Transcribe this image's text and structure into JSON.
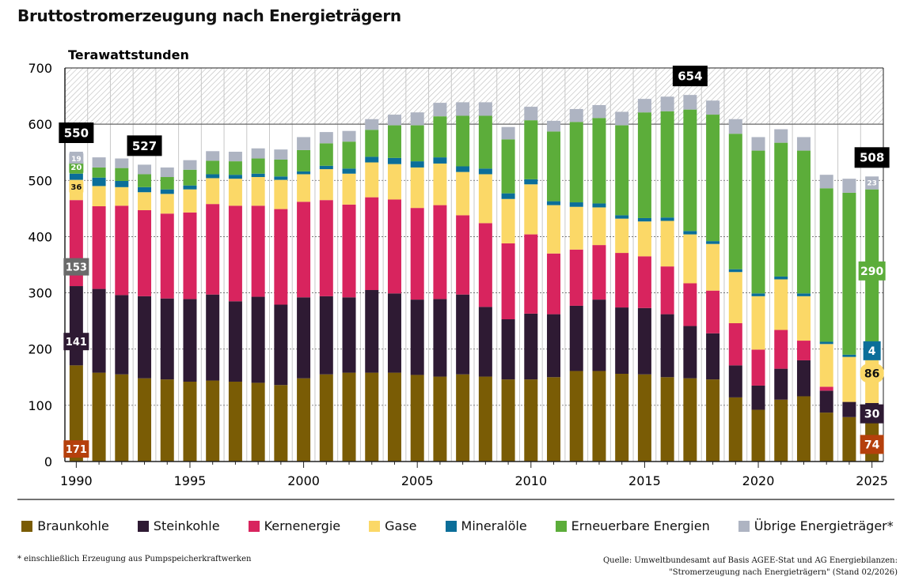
{
  "title": "Bruttostromerzeugung nach Energieträgern",
  "footnote": "* einschließlich Erzeugung aus Pumpspeicherkraftwerken",
  "source": {
    "line1": "Quelle: Umweltbundesamt auf Basis AGEE-Stat und AG Energiebilanzen:",
    "line2": "\"Stromerzeugung nach Energieträgern\" (Stand 02/2026)"
  },
  "colors": {
    "Braunkohle": "#7a5c05",
    "Steinkohle": "#2e1a33",
    "Kernenergie": "#d8245e",
    "Gase": "#fbd867",
    "Mineralöle": "#0b6e99",
    "Erneuerbare Energien": "#5cad3a",
    "Übrige Energieträger*": "#aeb4c2"
  },
  "chart_data": {
    "type": "bar",
    "stacked": true,
    "ylabel": "Terawattstunden",
    "ylim": [
      0,
      700
    ],
    "yticks": [
      0,
      100,
      200,
      300,
      400,
      500,
      600,
      700
    ],
    "xticks": [
      1990,
      1995,
      2000,
      2005,
      2010,
      2015,
      2020,
      2025
    ],
    "x": [
      1990,
      1991,
      1992,
      1993,
      1994,
      1995,
      1996,
      1997,
      1998,
      1999,
      2000,
      2001,
      2002,
      2003,
      2004,
      2005,
      2006,
      2007,
      2008,
      2009,
      2010,
      2011,
      2012,
      2013,
      2014,
      2015,
      2016,
      2017,
      2018,
      2019,
      2020,
      2021,
      2022,
      2023,
      2024,
      2025
    ],
    "series": [
      {
        "name": "Braunkohle",
        "values": [
          171,
          158,
          155,
          148,
          146,
          142,
          144,
          142,
          140,
          136,
          148,
          155,
          158,
          158,
          158,
          154,
          151,
          155,
          151,
          146,
          146,
          150,
          161,
          161,
          156,
          155,
          150,
          148,
          146,
          114,
          92,
          110,
          116,
          87,
          79,
          74
        ]
      },
      {
        "name": "Steinkohle",
        "values": [
          141,
          149,
          141,
          146,
          144,
          147,
          153,
          143,
          153,
          143,
          144,
          139,
          134,
          147,
          141,
          134,
          138,
          142,
          124,
          107,
          117,
          112,
          116,
          127,
          118,
          118,
          112,
          93,
          82,
          57,
          43,
          55,
          64,
          39,
          27,
          30
        ]
      },
      {
        "name": "Kernenergie",
        "values": [
          153,
          147,
          159,
          153,
          151,
          154,
          161,
          170,
          162,
          170,
          170,
          171,
          165,
          165,
          167,
          163,
          167,
          141,
          149,
          135,
          141,
          108,
          100,
          97,
          97,
          92,
          85,
          76,
          76,
          75,
          64,
          69,
          35,
          7,
          0,
          0
        ]
      },
      {
        "name": "Gase",
        "values": [
          36,
          36,
          33,
          32,
          35,
          41,
          46,
          48,
          51,
          52,
          49,
          55,
          55,
          62,
          63,
          72,
          74,
          77,
          87,
          79,
          89,
          86,
          76,
          67,
          61,
          62,
          81,
          87,
          83,
          91,
          95,
          90,
          79,
          76,
          80,
          86
        ]
      },
      {
        "name": "Mineralöle",
        "values": [
          11,
          15,
          11,
          9,
          8,
          7,
          7,
          7,
          6,
          6,
          5,
          6,
          9,
          10,
          11,
          11,
          11,
          10,
          10,
          10,
          9,
          7,
          8,
          7,
          6,
          6,
          6,
          6,
          5,
          5,
          5,
          5,
          5,
          4,
          4,
          4
        ]
      },
      {
        "name": "Erneuerbare Energien",
        "values": [
          20,
          18,
          23,
          23,
          22,
          28,
          24,
          24,
          27,
          30,
          38,
          40,
          48,
          48,
          58,
          64,
          73,
          90,
          94,
          96,
          105,
          124,
          143,
          152,
          160,
          188,
          189,
          216,
          225,
          241,
          254,
          238,
          254,
          273,
          288,
          290
        ]
      },
      {
        "name": "Übrige Energieträger*",
        "values": [
          19,
          18,
          17,
          17,
          17,
          17,
          17,
          17,
          18,
          18,
          23,
          20,
          19,
          19,
          19,
          23,
          24,
          24,
          24,
          22,
          24,
          19,
          23,
          23,
          24,
          24,
          26,
          26,
          25,
          26,
          24,
          24,
          24,
          24,
          25,
          23
        ]
      }
    ],
    "totals_labeled": [
      {
        "year": 1990,
        "value": "550"
      },
      {
        "year": 1993,
        "value": "527"
      },
      {
        "year": 2017,
        "value": "654"
      },
      {
        "year": 2025,
        "value": "508"
      }
    ],
    "segment_labels_1990": [
      "171",
      "141",
      "153",
      "36",
      "20",
      "19"
    ],
    "segment_labels_2025": [
      "74",
      "30",
      "86",
      "4",
      "290",
      "23"
    ]
  }
}
